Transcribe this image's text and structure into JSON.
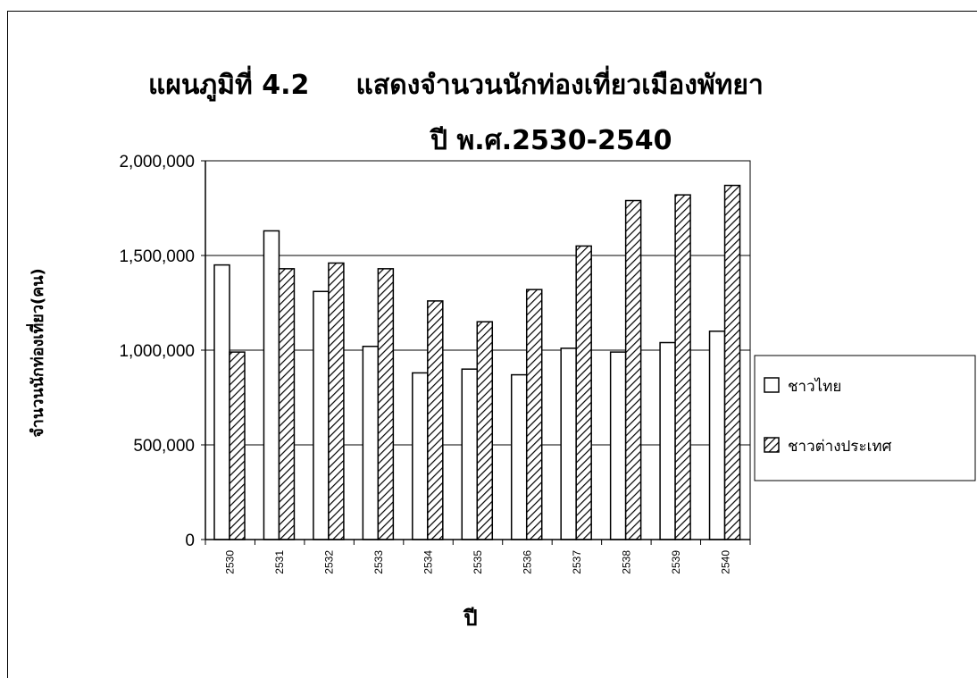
{
  "chart_data": {
    "type": "bar",
    "title": "แผนภูมิที่ 4.2     แสดงจำนวนนักท่องเที่ยวเมืองพัทยา",
    "subtitle": "ปี พ.ศ.2530-2540",
    "xlabel": "ปี",
    "ylabel": "จำนวนนักท่องเที่ยว(คน)",
    "categories": [
      "2530",
      "2531",
      "2532",
      "2533",
      "2534",
      "2535",
      "2536",
      "2537",
      "2538",
      "2539",
      "2540"
    ],
    "series": [
      {
        "name": "ชาวไทย",
        "values": [
          1450000,
          1630000,
          1310000,
          1020000,
          880000,
          900000,
          870000,
          1010000,
          990000,
          1040000,
          1100000
        ]
      },
      {
        "name": "ชาวต่างประเทศ",
        "values": [
          990000,
          1430000,
          1460000,
          1430000,
          1260000,
          1150000,
          1320000,
          1550000,
          1790000,
          1820000,
          1870000
        ]
      }
    ],
    "yticks": [
      "0",
      "500,000",
      "1,000,000",
      "1,500,000",
      "2,000,000"
    ],
    "ylim": [
      0,
      2000000
    ],
    "grid": true,
    "legend_position": "right"
  },
  "colors": {
    "series_1_fill": "#ffffff",
    "series_2_fill": "#ffffff",
    "series_2_hatch": "#000000",
    "axis": "#000000"
  }
}
